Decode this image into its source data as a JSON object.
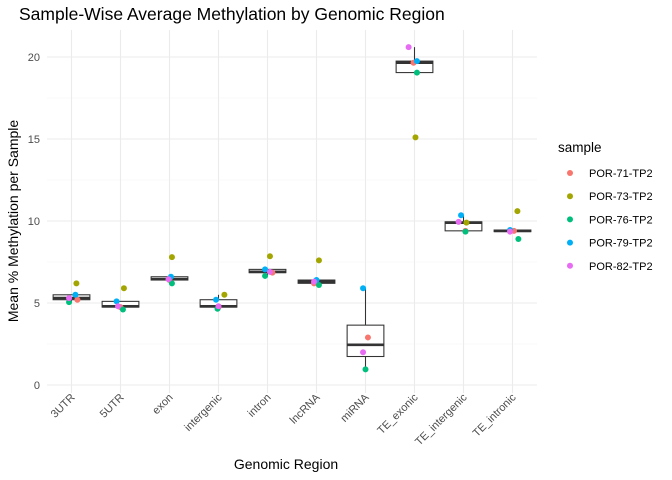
{
  "chart_data": {
    "type": "box",
    "title": "Sample-Wise Average Methylation by Genomic Region",
    "xlabel": "Genomic Region",
    "ylabel": "Mean % Methylation per Sample",
    "ylim": [
      0,
      21.2
    ],
    "yticks": [
      0,
      5,
      10,
      15,
      20
    ],
    "grid": true,
    "legend": {
      "title": "sample",
      "position": "right",
      "entries": [
        {
          "name": "POR-71-TP2",
          "color": "#F8766D"
        },
        {
          "name": "POR-73-TP2",
          "color": "#A3A500"
        },
        {
          "name": "POR-76-TP2",
          "color": "#00BF7D"
        },
        {
          "name": "POR-79-TP2",
          "color": "#00B0F6"
        },
        {
          "name": "POR-82-TP2",
          "color": "#E76BF3"
        }
      ]
    },
    "categories": [
      "3UTR",
      "5UTR",
      "exon",
      "intergenic",
      "intron",
      "lncRNA",
      "miRNA",
      "TE_exonic",
      "TE_intergenic",
      "TE_intronic"
    ],
    "series": [
      {
        "name": "POR-71-TP2",
        "values": [
          5.2,
          4.75,
          6.4,
          4.75,
          6.85,
          6.2,
          2.9,
          19.65,
          9.4,
          9.4
        ]
      },
      {
        "name": "POR-73-TP2",
        "values": [
          6.2,
          5.9,
          7.8,
          5.5,
          7.85,
          7.6,
          null,
          15.1,
          9.9,
          10.6
        ]
      },
      {
        "name": "POR-76-TP2",
        "values": [
          5.05,
          4.6,
          6.2,
          4.65,
          6.65,
          6.1,
          0.95,
          19.05,
          9.35,
          8.9
        ]
      },
      {
        "name": "POR-79-TP2",
        "values": [
          5.5,
          5.1,
          6.6,
          5.2,
          7.05,
          6.4,
          5.9,
          19.75,
          10.35,
          9.45
        ]
      },
      {
        "name": "POR-82-TP2",
        "values": [
          5.3,
          4.8,
          6.45,
          4.8,
          6.9,
          6.3,
          2.0,
          20.6,
          9.95,
          9.35
        ]
      }
    ],
    "point_offsets": {
      "POR-71-TP2": [
        0.12,
        0.0,
        0.0,
        0.0,
        0.1,
        -0.05,
        0.05,
        -0.02,
        0.04,
        0.03
      ],
      "POR-73-TP2": [
        0.1,
        0.07,
        0.05,
        0.12,
        0.05,
        0.05,
        0,
        0.02,
        0.06,
        0.1
      ],
      "POR-76-TP2": [
        -0.05,
        0.05,
        0.05,
        -0.02,
        -0.05,
        0.05,
        0.0,
        0.05,
        0.04,
        0.12
      ],
      "POR-79-TP2": [
        0.08,
        -0.08,
        0.03,
        -0.05,
        -0.05,
        0.0,
        -0.05,
        0.05,
        -0.05,
        -0.05
      ],
      "POR-82-TP2": [
        -0.05,
        -0.05,
        -0.02,
        0.0,
        0.05,
        -0.05,
        -0.05,
        -0.12,
        -0.1,
        -0.05
      ]
    }
  }
}
